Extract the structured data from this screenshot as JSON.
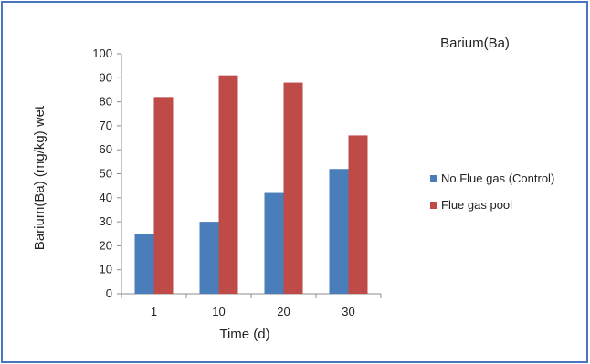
{
  "chart_data": {
    "type": "bar",
    "title": "Barium(Ba)",
    "xlabel": "Time (d)",
    "ylabel": "Barium(Ba) (mg/kg)  wet",
    "categories": [
      "1",
      "10",
      "20",
      "30"
    ],
    "ylim": [
      0,
      100
    ],
    "yticks": [
      0,
      10,
      20,
      30,
      40,
      50,
      60,
      70,
      80,
      90,
      100
    ],
    "grid": false,
    "legend_position": "right",
    "series": [
      {
        "name": "No Flue gas (Control)",
        "color": "#4a7ebb",
        "values": [
          25,
          30,
          42,
          52
        ]
      },
      {
        "name": "Flue gas pool",
        "color": "#be4b48",
        "values": [
          82,
          91,
          88,
          66
        ]
      }
    ]
  }
}
